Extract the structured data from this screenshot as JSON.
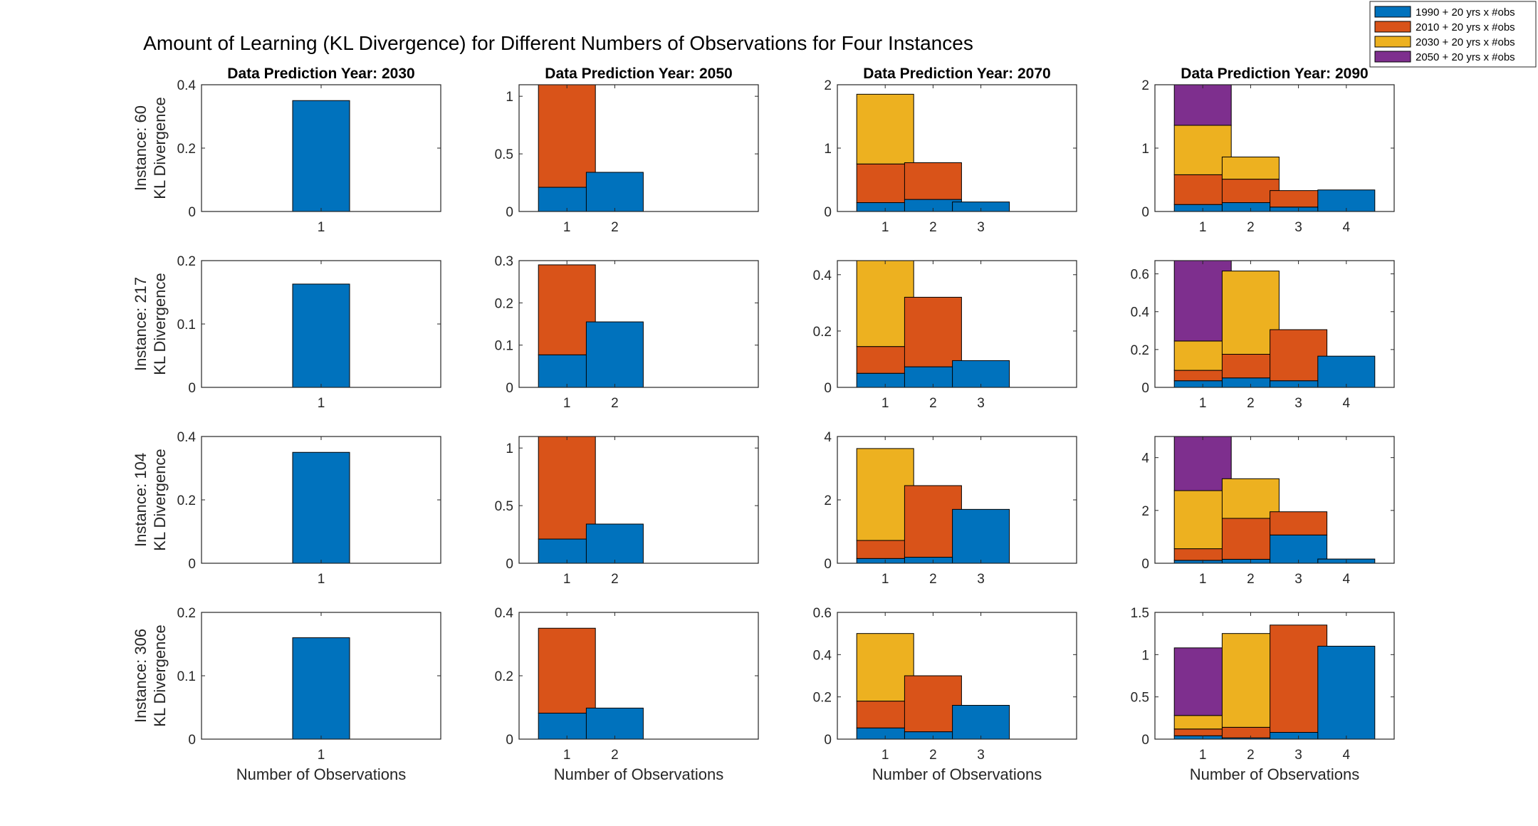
{
  "figure": {
    "title": "Amount of Learning (KL Divergence) for Different Numbers of Observations for Four Instances",
    "xlabel": "Number of Observations",
    "ylabel": "KL Divergence",
    "legend": {
      "placement": "top-right",
      "entries": [
        {
          "label": "1990 + 20 yrs x #obs",
          "color": "#0072BD"
        },
        {
          "label": "2010 + 20 yrs x #obs",
          "color": "#D95319"
        },
        {
          "label": "2030 + 20 yrs x #obs",
          "color": "#EDB120"
        },
        {
          "label": "2050 + 20 yrs x #obs",
          "color": "#7E2F8E"
        }
      ]
    },
    "column_titles": [
      "Data Prediction Year: 2030",
      "Data Prediction Year: 2050",
      "Data Prediction Year: 2070",
      "Data Prediction Year: 2090"
    ],
    "row_labels": [
      "Instance: 60",
      "Instance: 217",
      "Instance: 104",
      "Instance: 306"
    ]
  },
  "chart_data": [
    {
      "type": "bar",
      "stacked": true,
      "instance": "Instance: 60",
      "column": "Data Prediction Year: 2030",
      "categories": [
        "1"
      ],
      "ylim": [
        0,
        0.4
      ],
      "yticks": [
        0,
        0.2,
        0.4
      ],
      "segments": [
        [
          0.35
        ]
      ]
    },
    {
      "type": "bar",
      "stacked": true,
      "instance": "Instance: 60",
      "column": "Data Prediction Year: 2050",
      "categories": [
        "1",
        "2"
      ],
      "ylim": [
        0,
        1.1
      ],
      "yticks": [
        0,
        0.5,
        1
      ],
      "segments": [
        [
          0.21,
          0.89
        ],
        [
          0.34
        ]
      ]
    },
    {
      "type": "bar",
      "stacked": true,
      "instance": "Instance: 60",
      "column": "Data Prediction Year: 2070",
      "categories": [
        "1",
        "2",
        "3"
      ],
      "ylim": [
        0,
        2
      ],
      "yticks": [
        0,
        1,
        2
      ],
      "segments": [
        [
          0.14,
          0.61,
          1.1
        ],
        [
          0.19,
          0.58
        ],
        [
          0.15
        ]
      ]
    },
    {
      "type": "bar",
      "stacked": true,
      "instance": "Instance: 60",
      "column": "Data Prediction Year: 2090",
      "categories": [
        "1",
        "2",
        "3",
        "4"
      ],
      "ylim": [
        0,
        2
      ],
      "yticks": [
        0,
        1,
        2
      ],
      "segments": [
        [
          0.11,
          0.47,
          0.78,
          0.64
        ],
        [
          0.14,
          0.37,
          0.35
        ],
        [
          0.07,
          0.26
        ],
        [
          0.34
        ]
      ]
    },
    {
      "type": "bar",
      "stacked": true,
      "instance": "Instance: 217",
      "column": "Data Prediction Year: 2030",
      "categories": [
        "1"
      ],
      "ylim": [
        0,
        0.2
      ],
      "yticks": [
        0,
        0.1,
        0.2
      ],
      "segments": [
        [
          0.163
        ]
      ]
    },
    {
      "type": "bar",
      "stacked": true,
      "instance": "Instance: 217",
      "column": "Data Prediction Year: 2050",
      "categories": [
        "1",
        "2"
      ],
      "ylim": [
        0,
        0.3
      ],
      "yticks": [
        0,
        0.1,
        0.2,
        0.3
      ],
      "segments": [
        [
          0.077,
          0.213
        ],
        [
          0.155
        ]
      ]
    },
    {
      "type": "bar",
      "stacked": true,
      "instance": "Instance: 217",
      "column": "Data Prediction Year: 2070",
      "categories": [
        "1",
        "2",
        "3"
      ],
      "ylim": [
        0,
        0.45
      ],
      "yticks": [
        0,
        0.2,
        0.4
      ],
      "segments": [
        [
          0.05,
          0.095,
          0.305
        ],
        [
          0.073,
          0.247
        ],
        [
          0.095
        ]
      ]
    },
    {
      "type": "bar",
      "stacked": true,
      "instance": "Instance: 217",
      "column": "Data Prediction Year: 2090",
      "categories": [
        "1",
        "2",
        "3",
        "4"
      ],
      "ylim": [
        0,
        0.67
      ],
      "yticks": [
        0,
        0.2,
        0.4,
        0.6
      ],
      "segments": [
        [
          0.035,
          0.055,
          0.155,
          0.425
        ],
        [
          0.05,
          0.125,
          0.44
        ],
        [
          0.035,
          0.27
        ],
        [
          0.165
        ]
      ]
    },
    {
      "type": "bar",
      "stacked": true,
      "instance": "Instance: 104",
      "column": "Data Prediction Year: 2030",
      "categories": [
        "1"
      ],
      "ylim": [
        0,
        0.4
      ],
      "yticks": [
        0,
        0.2,
        0.4
      ],
      "segments": [
        [
          0.35
        ]
      ]
    },
    {
      "type": "bar",
      "stacked": true,
      "instance": "Instance: 104",
      "column": "Data Prediction Year: 2050",
      "categories": [
        "1",
        "2"
      ],
      "ylim": [
        0,
        1.1
      ],
      "yticks": [
        0,
        0.5,
        1
      ],
      "segments": [
        [
          0.21,
          0.89
        ],
        [
          0.34
        ]
      ]
    },
    {
      "type": "bar",
      "stacked": true,
      "instance": "Instance: 104",
      "column": "Data Prediction Year: 2070",
      "categories": [
        "1",
        "2",
        "3"
      ],
      "ylim": [
        0,
        4
      ],
      "yticks": [
        0,
        2,
        4
      ],
      "segments": [
        [
          0.15,
          0.57,
          2.9
        ],
        [
          0.19,
          2.26
        ],
        [
          1.7
        ]
      ]
    },
    {
      "type": "bar",
      "stacked": true,
      "instance": "Instance: 104",
      "column": "Data Prediction Year: 2090",
      "categories": [
        "1",
        "2",
        "3",
        "4"
      ],
      "ylim": [
        0,
        4.8
      ],
      "yticks": [
        0,
        2,
        4
      ],
      "segments": [
        [
          0.11,
          0.44,
          2.2,
          2.05
        ],
        [
          0.15,
          1.55,
          1.5
        ],
        [
          1.07,
          0.88
        ],
        [
          0.16
        ]
      ]
    },
    {
      "type": "bar",
      "stacked": true,
      "instance": "Instance: 306",
      "column": "Data Prediction Year: 2030",
      "categories": [
        "1"
      ],
      "ylim": [
        0,
        0.2
      ],
      "yticks": [
        0,
        0.1,
        0.2
      ],
      "segments": [
        [
          0.16
        ]
      ]
    },
    {
      "type": "bar",
      "stacked": true,
      "instance": "Instance: 306",
      "column": "Data Prediction Year: 2050",
      "categories": [
        "1",
        "2"
      ],
      "ylim": [
        0,
        0.4
      ],
      "yticks": [
        0,
        0.2,
        0.4
      ],
      "segments": [
        [
          0.082,
          0.268
        ],
        [
          0.098
        ]
      ]
    },
    {
      "type": "bar",
      "stacked": true,
      "instance": "Instance: 306",
      "column": "Data Prediction Year: 2070",
      "categories": [
        "1",
        "2",
        "3"
      ],
      "ylim": [
        0,
        0.6
      ],
      "yticks": [
        0,
        0.2,
        0.4,
        0.6
      ],
      "segments": [
        [
          0.053,
          0.127,
          0.32
        ],
        [
          0.035,
          0.265
        ],
        [
          0.16
        ]
      ]
    },
    {
      "type": "bar",
      "stacked": true,
      "instance": "Instance: 306",
      "column": "Data Prediction Year: 2090",
      "categories": [
        "1",
        "2",
        "3",
        "4"
      ],
      "ylim": [
        0,
        1.5
      ],
      "yticks": [
        0,
        0.5,
        1,
        1.5
      ],
      "segments": [
        [
          0.04,
          0.08,
          0.16,
          0.8
        ],
        [
          0.015,
          0.125,
          1.11
        ],
        [
          0.08,
          1.27
        ],
        [
          1.1
        ]
      ]
    }
  ]
}
